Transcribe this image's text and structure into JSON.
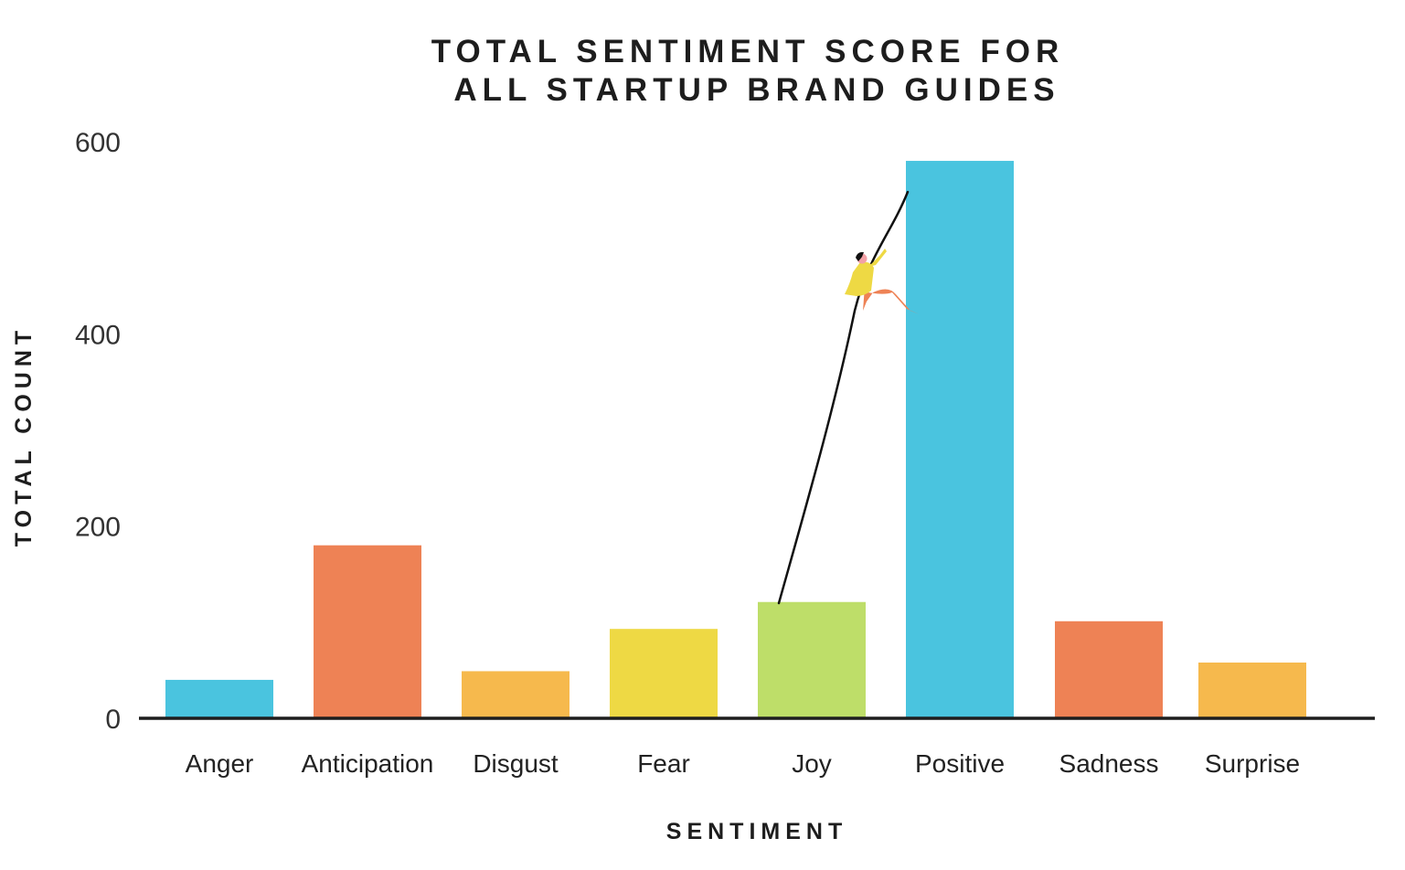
{
  "chart_data": {
    "type": "bar",
    "title_lines": [
      "TOTAL SENTIMENT SCORE FOR",
      "ALL STARTUP BRAND GUIDES"
    ],
    "xlabel": "SENTIMENT",
    "ylabel": "TOTAL COUNT",
    "categories": [
      "Anger",
      "Anticipation",
      "Disgust",
      "Fear",
      "Joy",
      "Positive",
      "Sadness",
      "Surprise"
    ],
    "values": [
      40,
      180,
      49,
      93,
      121,
      580,
      101,
      58
    ],
    "colors": [
      "#4ac4df",
      "#ee8255",
      "#f6b94d",
      "#eed944",
      "#bede69",
      "#4ac4df",
      "#ee8255",
      "#f6b94d"
    ],
    "ylim": [
      0,
      600
    ],
    "yticks": [
      0,
      200,
      400,
      600
    ],
    "grid": false,
    "legend": "none",
    "decoration": "climber-on-rope-icon"
  }
}
